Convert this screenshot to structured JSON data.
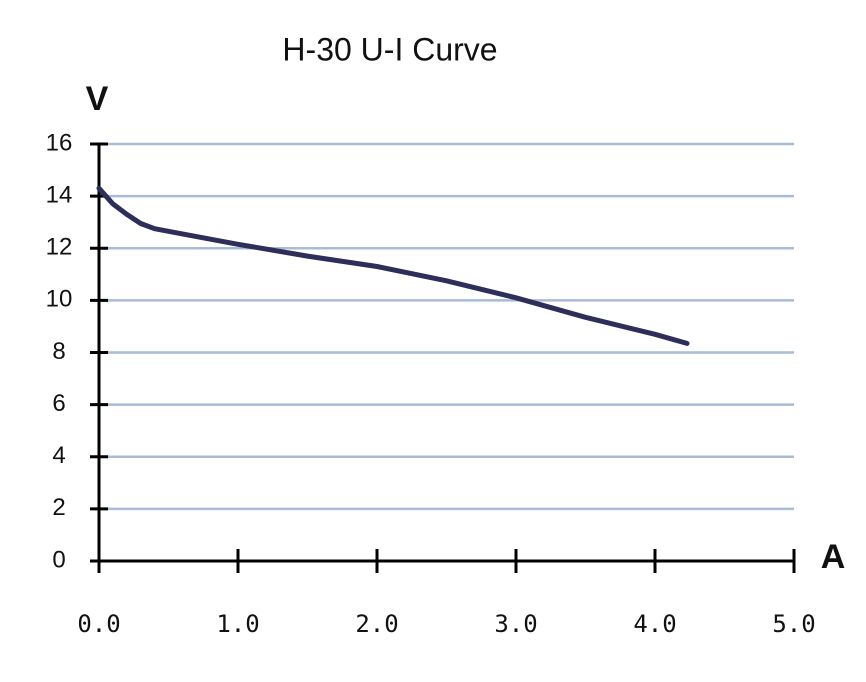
{
  "chart_data": {
    "type": "line",
    "title": "H-30 U-I Curve",
    "x_label": "A",
    "y_label": "V",
    "xlim": [
      0,
      5
    ],
    "ylim": [
      0,
      16
    ],
    "xticks": [
      {
        "value": 0,
        "label": "0.0"
      },
      {
        "value": 1,
        "label": "1.0"
      },
      {
        "value": 2,
        "label": "2.0"
      },
      {
        "value": 3,
        "label": "3.0"
      },
      {
        "value": 4,
        "label": "4.0"
      },
      {
        "value": 5,
        "label": "5.0"
      }
    ],
    "yticks": [
      0,
      2,
      4,
      6,
      8,
      10,
      12,
      14,
      16
    ],
    "grid": true,
    "series": [
      {
        "color": "#2e2e5a",
        "x": [
          0.0,
          0.1,
          0.2,
          0.3,
          0.4,
          0.6,
          1.0,
          1.5,
          2.0,
          2.5,
          3.0,
          3.5,
          4.0,
          4.23
        ],
        "values": [
          14.3,
          13.7,
          13.3,
          12.95,
          12.75,
          12.55,
          12.15,
          11.7,
          11.3,
          10.75,
          10.1,
          9.35,
          8.7,
          8.35
        ]
      }
    ]
  }
}
